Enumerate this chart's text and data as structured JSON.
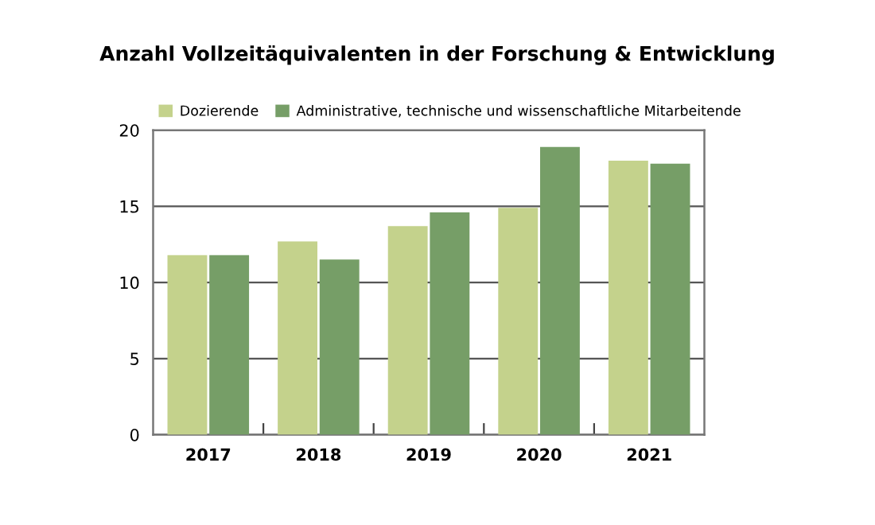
{
  "chart_data": {
    "type": "bar",
    "title": "Anzahl Vollzeitäquivalenten in der Forschung & Entwicklung",
    "categories": [
      "2017",
      "2018",
      "2019",
      "2020",
      "2021"
    ],
    "series": [
      {
        "name": "Dozierende",
        "color": "#c4d28c",
        "values": [
          11.8,
          12.7,
          13.7,
          14.9,
          18.0
        ]
      },
      {
        "name": "Administrative, technische und wissenschaftliche Mitarbeitende",
        "color": "#769e67",
        "values": [
          11.8,
          11.5,
          14.6,
          18.9,
          17.8
        ]
      }
    ],
    "ylim": [
      0,
      20
    ],
    "yticks": [
      0,
      5,
      10,
      15,
      20
    ],
    "grid": "y",
    "legend": "top left"
  }
}
